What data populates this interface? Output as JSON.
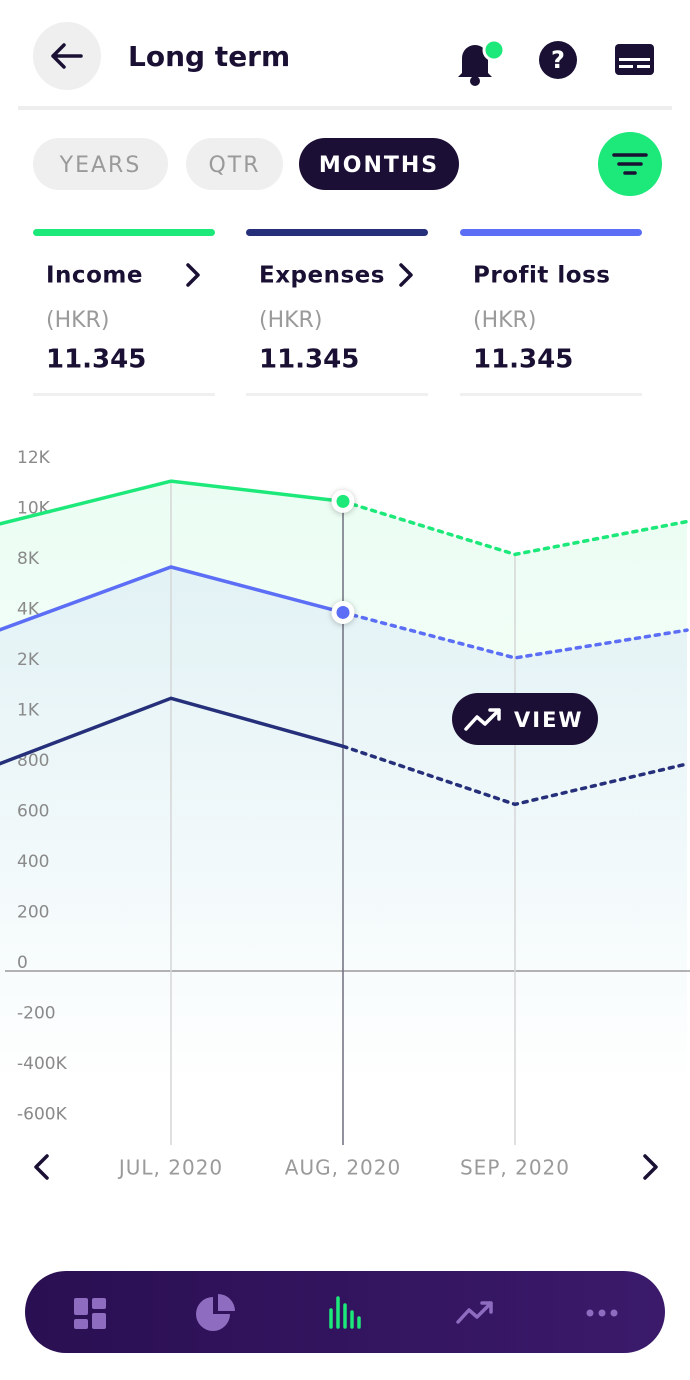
{
  "header": {
    "title": "Long term"
  },
  "tabs": {
    "items": [
      "YEARS",
      "QTR",
      "MONTHS"
    ],
    "selected": 2
  },
  "metrics": [
    {
      "label": "Income",
      "unit": "(HKR)",
      "value": "11.345",
      "color": "#1de87a"
    },
    {
      "label": "Expenses",
      "unit": "(HKR)",
      "value": "11.345",
      "color": "#26307a"
    },
    {
      "label": "Profit loss",
      "unit": "(HKR)",
      "value": "11.345",
      "color": "#5b6ef5"
    }
  ],
  "chart_data": {
    "type": "line",
    "categories": [
      null,
      "JUL, 2020",
      "AUG, 2020",
      "SEP, 2020",
      null
    ],
    "series": [
      {
        "name": "Income",
        "color": "#1de87a",
        "values": [
          9700,
          11400,
          10600,
          8500,
          9800
        ]
      },
      {
        "name": "Profit loss",
        "color": "#5b6ef5",
        "values": [
          3500,
          8000,
          4400,
          2400,
          3500
        ]
      },
      {
        "name": "Expenses",
        "color": "#26307a",
        "values": [
          820,
          1400,
          890,
          660,
          820
        ]
      }
    ],
    "ylim": [
      -600000,
      12000
    ],
    "yticks": [
      {
        "value": 12000,
        "label": "12K"
      },
      {
        "value": 10000,
        "label": "10K"
      },
      {
        "value": 8000,
        "label": "8K"
      },
      {
        "value": 4000,
        "label": "4K"
      },
      {
        "value": 2000,
        "label": "2K"
      },
      {
        "value": 1000,
        "label": "1K"
      },
      800,
      600,
      400,
      200,
      0,
      -200,
      {
        "value": -400000,
        "label": "-400K"
      },
      {
        "value": -600000,
        "label": "-600K"
      }
    ],
    "dashed_from": 2,
    "highlight_index": 2,
    "annotation": "VIEW"
  }
}
